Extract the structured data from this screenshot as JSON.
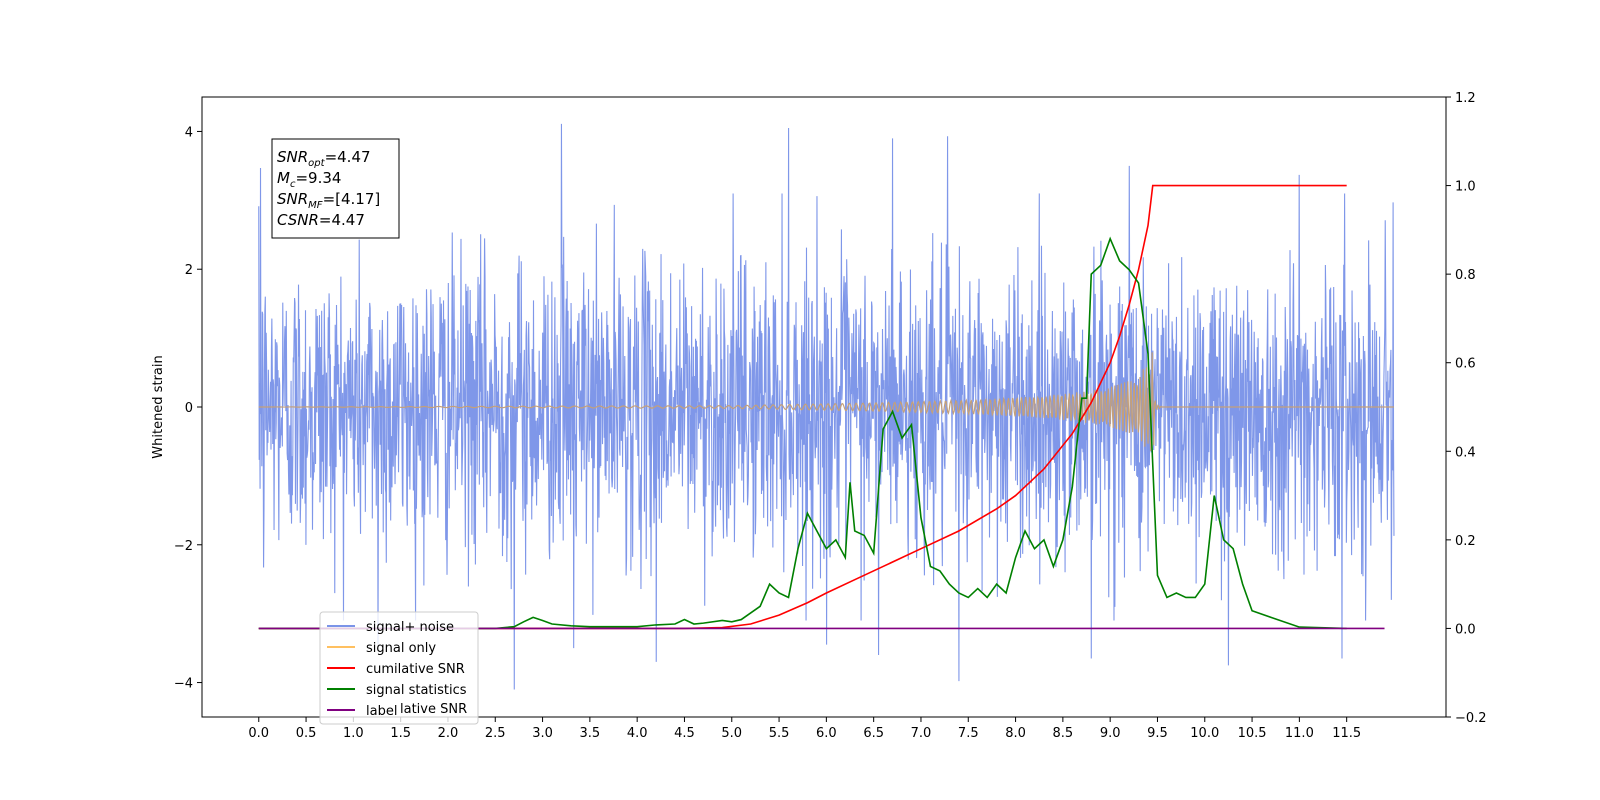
{
  "chart_data": {
    "type": "line",
    "ylabel": "Whitened strain",
    "xlim": [
      -0.6,
      12.55
    ],
    "ylim": [
      -4.5,
      4.5
    ],
    "y2lim": [
      -0.2,
      1.2
    ],
    "x_ticks": [
      0.0,
      0.5,
      1.0,
      1.5,
      2.0,
      2.5,
      3.0,
      3.5,
      4.0,
      4.5,
      5.0,
      5.5,
      6.0,
      6.5,
      7.0,
      7.5,
      8.0,
      8.5,
      9.0,
      9.5,
      10.0,
      10.5,
      11.0,
      11.5
    ],
    "x_tick_labels": [
      "0.0",
      "0.5",
      "1.0",
      "1.5",
      "2.0",
      "2.5",
      "3.0",
      "3.5",
      "4.0",
      "4.5",
      "5.0",
      "5.5",
      "6.0",
      "6.5",
      "7.0",
      "7.5",
      "8.0",
      "8.5",
      "9.0",
      "9.5",
      "10.0",
      "10.5",
      "11.0",
      "11.5"
    ],
    "y_ticks": [
      -4,
      -2,
      0,
      2,
      4
    ],
    "y_tick_labels": [
      "−4",
      "−2",
      "0",
      "2",
      "4"
    ],
    "y2_ticks": [
      -0.2,
      0.0,
      0.2,
      0.4,
      0.6,
      0.8,
      1.0,
      1.2
    ],
    "y2_tick_labels": [
      "−0.2",
      "0.0",
      "0.2",
      "0.4",
      "0.6",
      "0.8",
      "1.0",
      "1.2"
    ],
    "annotation": {
      "lines": [
        {
          "name": "SNR",
          "sub": "opt",
          "value": "=4.47"
        },
        {
          "name": "M",
          "sub": "c",
          "value": "=9.34"
        },
        {
          "name": "SNR",
          "sub": "MF",
          "value": "=[4.17]"
        },
        {
          "name": "CSNR",
          "sub": "",
          "value": "=4.47"
        }
      ]
    },
    "legend": {
      "placement": "lower-left",
      "entries": [
        {
          "label": "signal+ noise",
          "color": "#7b94e8"
        },
        {
          "label": "signal only",
          "color": "#ffc060"
        },
        {
          "label": "cumilative SNR",
          "color": "#ff0000"
        },
        {
          "label": "signal statistics",
          "color": "#008000"
        },
        {
          "label": "label",
          "color": "#800080"
        }
      ],
      "overlapped_text": "lative SNR"
    },
    "series": [
      {
        "name": "signal+ noise",
        "axis": "left",
        "color": "#7b94e8",
        "x_range": [
          0.0,
          12.0
        ],
        "noise_std": 1.05,
        "peaks": [
          [
            0.02,
            3.47
          ],
          [
            0.05,
            -2.33
          ],
          [
            1.26,
            -3.45
          ],
          [
            2.7,
            -4.1
          ],
          [
            3.2,
            4.11
          ],
          [
            3.33,
            -3.5
          ],
          [
            4.2,
            -3.7
          ],
          [
            5.6,
            4.05
          ],
          [
            6.7,
            3.9
          ],
          [
            6.0,
            -3.45
          ],
          [
            6.55,
            -3.6
          ],
          [
            7.28,
            3.93
          ],
          [
            7.4,
            -3.98
          ],
          [
            8.8,
            -3.65
          ],
          [
            9.2,
            3.5
          ],
          [
            10.25,
            -3.75
          ],
          [
            11.0,
            3.37
          ],
          [
            11.45,
            -3.65
          ],
          [
            11.99,
            2.97
          ]
        ]
      },
      {
        "name": "signal only",
        "axis": "left",
        "color": "#c4a07a",
        "envelope": [
          [
            0,
            0.0
          ],
          [
            5.0,
            0.02
          ],
          [
            6.5,
            0.06
          ],
          [
            7.5,
            0.1
          ],
          [
            8.3,
            0.16
          ],
          [
            8.8,
            0.24
          ],
          [
            9.1,
            0.33
          ],
          [
            9.3,
            0.45
          ],
          [
            9.4,
            0.65
          ],
          [
            9.45,
            0.85
          ],
          [
            9.48,
            0.05
          ],
          [
            9.55,
            0.0
          ],
          [
            12.0,
            0.0
          ]
        ]
      },
      {
        "name": "cumilative SNR",
        "axis": "right",
        "color": "#ff0000",
        "x": [
          0.0,
          4.5,
          4.9,
          5.2,
          5.5,
          5.8,
          6.0,
          6.3,
          6.6,
          7.0,
          7.4,
          7.8,
          8.0,
          8.3,
          8.6,
          8.8,
          9.0,
          9.1,
          9.2,
          9.3,
          9.4,
          9.45,
          11.5
        ],
        "y": [
          0.0,
          0.0,
          0.002,
          0.01,
          0.03,
          0.058,
          0.08,
          0.11,
          0.14,
          0.18,
          0.22,
          0.27,
          0.3,
          0.36,
          0.44,
          0.51,
          0.6,
          0.66,
          0.73,
          0.81,
          0.91,
          1.0,
          1.0
        ]
      },
      {
        "name": "signal statistics",
        "axis": "right",
        "color": "#008000",
        "x": [
          0.0,
          2.5,
          2.7,
          2.8,
          2.9,
          3.0,
          3.1,
          3.3,
          3.5,
          4.0,
          4.2,
          4.4,
          4.5,
          4.6,
          4.7,
          4.9,
          5.0,
          5.1,
          5.2,
          5.3,
          5.4,
          5.5,
          5.6,
          5.7,
          5.8,
          5.9,
          6.0,
          6.1,
          6.2,
          6.25,
          6.3,
          6.4,
          6.5,
          6.6,
          6.7,
          6.8,
          6.9,
          7.0,
          7.1,
          7.2,
          7.3,
          7.4,
          7.5,
          7.6,
          7.7,
          7.8,
          7.9,
          8.0,
          8.1,
          8.2,
          8.3,
          8.4,
          8.5,
          8.6,
          8.7,
          8.75,
          8.8,
          8.9,
          9.0,
          9.1,
          9.2,
          9.3,
          9.4,
          9.5,
          9.6,
          9.7,
          9.8,
          9.9,
          10.0,
          10.1,
          10.2,
          10.3,
          10.4,
          10.5,
          10.7,
          11.0,
          11.5
        ],
        "y": [
          0.0,
          0.0,
          0.004,
          0.015,
          0.025,
          0.018,
          0.01,
          0.006,
          0.004,
          0.004,
          0.008,
          0.01,
          0.02,
          0.01,
          0.012,
          0.018,
          0.015,
          0.02,
          0.035,
          0.05,
          0.1,
          0.08,
          0.07,
          0.18,
          0.26,
          0.22,
          0.18,
          0.2,
          0.16,
          0.33,
          0.22,
          0.21,
          0.17,
          0.45,
          0.49,
          0.43,
          0.46,
          0.25,
          0.14,
          0.13,
          0.1,
          0.08,
          0.07,
          0.09,
          0.07,
          0.1,
          0.08,
          0.16,
          0.22,
          0.18,
          0.2,
          0.14,
          0.2,
          0.32,
          0.52,
          0.52,
          0.8,
          0.82,
          0.88,
          0.83,
          0.81,
          0.78,
          0.62,
          0.12,
          0.07,
          0.08,
          0.07,
          0.07,
          0.1,
          0.3,
          0.2,
          0.18,
          0.1,
          0.04,
          0.025,
          0.003,
          0.0
        ]
      },
      {
        "name": "label",
        "axis": "right",
        "color": "#800080",
        "x": [
          0.0,
          11.9
        ],
        "y": [
          0.0,
          0.0
        ]
      }
    ]
  }
}
